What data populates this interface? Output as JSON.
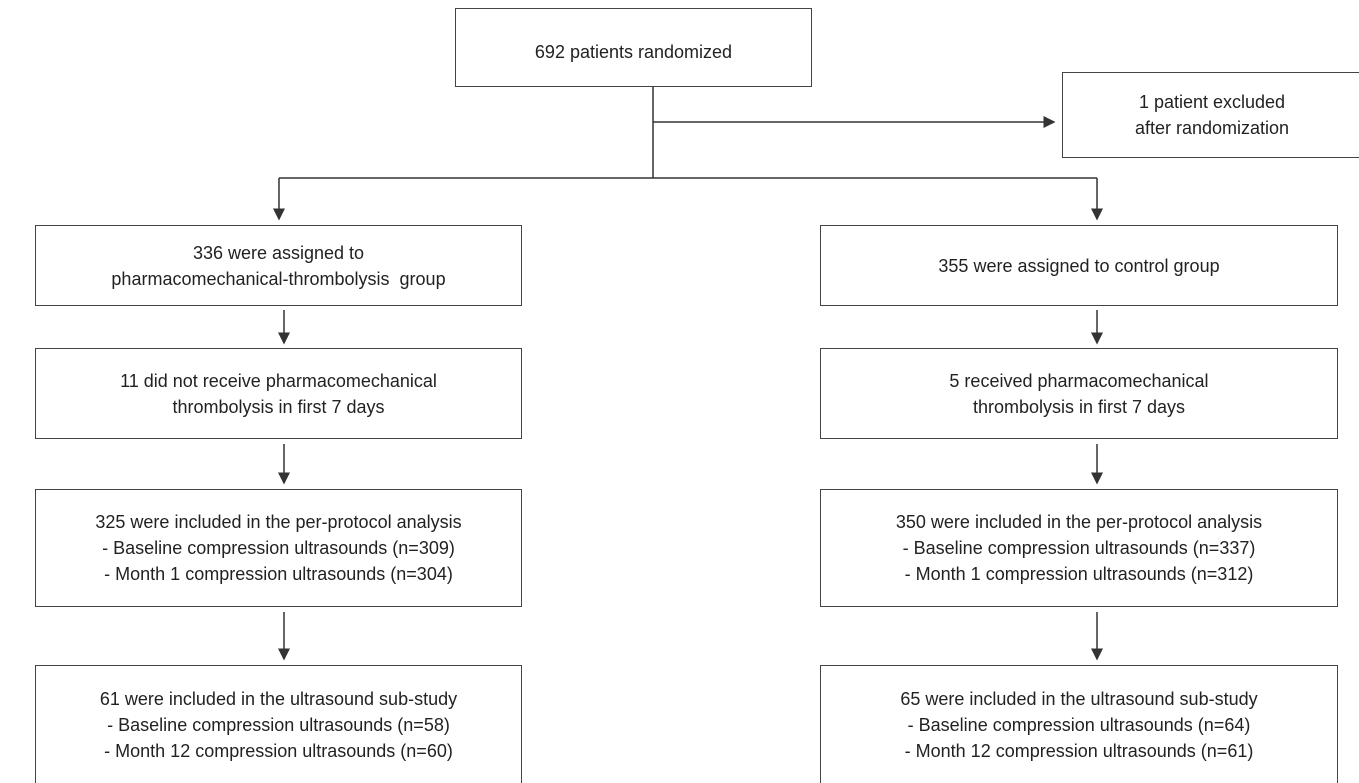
{
  "nodes": [
    {
      "lines": [
        "692 patients randomized"
      ]
    },
    {
      "lines": [
        "1 patient excluded",
        "after randomization"
      ]
    },
    {
      "lines": [
        "336 were assigned to",
        "pharmacomechanical-thrombolysis  group"
      ]
    },
    {
      "lines": [
        "355 were assigned to control group"
      ]
    },
    {
      "lines": [
        "11 did not receive pharmacomechanical",
        "thrombolysis in first 7 days"
      ]
    },
    {
      "lines": [
        "5 received pharmacomechanical",
        "thrombolysis in first 7 days"
      ]
    },
    {
      "lines": [
        "325 were included in the per-protocol analysis",
        "- Baseline compression ultrasounds (n=309)",
        "- Month 1 compression ultrasounds (n=304)"
      ]
    },
    {
      "lines": [
        "350 were included in the per-protocol analysis",
        "- Baseline compression ultrasounds (n=337)",
        "- Month 1 compression ultrasounds (n=312)"
      ]
    },
    {
      "lines": [
        "61 were included in the ultrasound sub-study",
        "- Baseline compression ultrasounds (n=58)",
        "- Month 12 compression ultrasounds (n=60)"
      ]
    },
    {
      "lines": [
        "65 were included in the ultrasound sub-study",
        "- Baseline compression ultrasounds (n=64)",
        "- Month 12 compression ultrasounds (n=61)"
      ]
    }
  ]
}
